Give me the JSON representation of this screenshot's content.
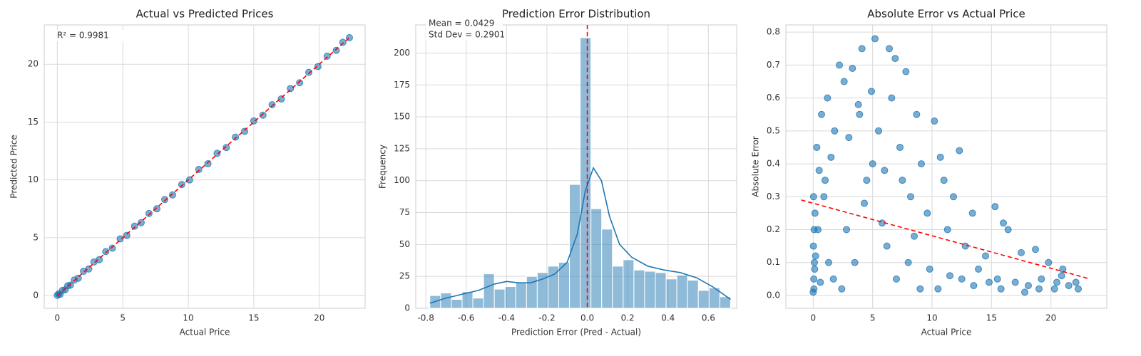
{
  "chart_data": [
    {
      "type": "scatter",
      "title": "Actual vs Predicted Prices",
      "x_label": "Actual Price",
      "y_label": "Predicted Price",
      "xlim": [
        -1,
        23.5
      ],
      "ylim": [
        -1.1,
        23.4
      ],
      "xticks": [
        0,
        5,
        10,
        15,
        20
      ],
      "yticks": [
        0,
        5,
        10,
        15,
        20
      ],
      "grid": true,
      "color": "#1f77b4",
      "x": [
        0,
        0.1,
        0.2,
        0.4,
        0.6,
        0.8,
        1,
        1.3,
        1.6,
        2,
        2.4,
        2.8,
        3.2,
        3.7,
        4.2,
        4.8,
        5.3,
        5.9,
        6.4,
        7,
        7.6,
        8.2,
        8.8,
        9.5,
        10.1,
        10.8,
        11.5,
        12.2,
        12.9,
        13.6,
        14.3,
        15,
        15.7,
        16.4,
        17.1,
        17.8,
        18.5,
        19.2,
        19.9,
        20.6,
        21.3,
        21.8,
        22.3
      ],
      "y": [
        0.02,
        0.15,
        0.1,
        0.45,
        0.5,
        0.85,
        0.9,
        1.35,
        1.5,
        2.1,
        2.3,
        2.9,
        3.1,
        3.8,
        4.1,
        4.9,
        5.2,
        6,
        6.3,
        7.1,
        7.5,
        8.3,
        8.7,
        9.6,
        10,
        10.9,
        11.4,
        12.3,
        12.8,
        13.7,
        14.2,
        15.1,
        15.6,
        16.5,
        17,
        17.9,
        18.4,
        19.3,
        19.8,
        20.7,
        21.2,
        21.9,
        22.3
      ],
      "lines": [
        {
          "x": [
            0,
            22.3
          ],
          "y": [
            0,
            22.3
          ],
          "color": "#ff0000",
          "dashed": true
        }
      ],
      "annotations": [
        "R² = 0.9981"
      ]
    },
    {
      "type": "histogram",
      "title": "Prediction Error Distribution",
      "x_label": "Prediction Error (Pred - Actual)",
      "y_label": "Frequency",
      "xlim": [
        -0.85,
        0.74
      ],
      "ylim": [
        0,
        222
      ],
      "xticks": [
        -0.8,
        -0.6,
        -0.4,
        -0.2,
        {
          "value": 0,
          "label": "0.0"
        },
        0.2,
        0.4,
        0.6
      ],
      "yticks": [
        0,
        25,
        50,
        75,
        100,
        125,
        150,
        175,
        200
      ],
      "grid": true,
      "color": "#1f77b4",
      "bins": [
        -0.78,
        -0.7268,
        -0.6736,
        -0.6204,
        -0.5672,
        -0.514,
        -0.4608,
        -0.4076,
        -0.3544,
        -0.3012,
        -0.248,
        -0.1948,
        -0.1416,
        -0.0884,
        -0.0352,
        0.018,
        0.0712,
        0.1244,
        0.1776,
        0.2308,
        0.284,
        0.3372,
        0.3904,
        0.4436,
        0.4968,
        0.55,
        0.6032,
        0.6564,
        0.7096
      ],
      "values": [
        10,
        12,
        7,
        13,
        8,
        27,
        15,
        17,
        20,
        25,
        28,
        33,
        36,
        97,
        212,
        78,
        62,
        33,
        38,
        30,
        29,
        28,
        23,
        26,
        22,
        14,
        16,
        9
      ],
      "lines": [
        {
          "x": [
            -0.78,
            -0.7,
            -0.62,
            -0.54,
            -0.46,
            -0.4,
            -0.34,
            -0.28,
            -0.22,
            -0.16,
            -0.1,
            -0.05,
            -0.01,
            0.03,
            0.07,
            0.11,
            0.16,
            0.22,
            0.3,
            0.38,
            0.46,
            0.54,
            0.62,
            0.71
          ],
          "y": [
            4,
            8,
            11,
            14,
            19,
            21,
            20,
            20,
            23,
            27,
            36,
            58,
            92,
            110,
            100,
            72,
            50,
            40,
            33,
            30,
            28,
            24,
            17,
            7
          ],
          "color": "#1f77b4",
          "dashed": false
        }
      ],
      "vline": {
        "value": 0,
        "color": "#ff0000"
      },
      "annotations": [
        "Mean = 0.0429",
        "Std Dev = 0.2901"
      ]
    },
    {
      "type": "scatter",
      "title": "Absolute Error vs Actual Price",
      "x_label": "Actual Price",
      "y_label": "Absolute Error",
      "xlim": [
        -2.3,
        24.7
      ],
      "ylim": [
        -0.039,
        0.822
      ],
      "xticks": [
        0,
        5,
        10,
        15,
        20
      ],
      "yticks": [
        {
          "value": 0,
          "label": "0.0"
        },
        0.1,
        0.2,
        0.3,
        0.4,
        0.5,
        0.6,
        0.7,
        0.8
      ],
      "grid": true,
      "color": "#1f77b4",
      "x": [
        0,
        0.05,
        0.1,
        0.02,
        0.08,
        0.15,
        0.03,
        0.12,
        0.06,
        0.2,
        0.3,
        0.5,
        0.7,
        0.9,
        1.2,
        1.5,
        1.8,
        0.4,
        0.6,
        1.0,
        1.3,
        1.7,
        2.2,
        2.6,
        3.0,
        3.3,
        3.8,
        4.1,
        4.5,
        4.9,
        5.2,
        2.8,
        3.5,
        4.3,
        5.0,
        2.4,
        3.9,
        5.5,
        6.0,
        6.4,
        6.9,
        7.3,
        7.8,
        8.2,
        8.7,
        9.1,
        9.6,
        6.2,
        7.0,
        8.0,
        9.0,
        5.8,
        6.6,
        7.5,
        8.5,
        9.8,
        10.2,
        10.7,
        11.3,
        11.8,
        12.3,
        12.8,
        13.4,
        13.9,
        14.5,
        10.5,
        11.5,
        12.5,
        13.5,
        14.8,
        11.0,
        15.3,
        15.8,
        16.4,
        17.0,
        17.5,
        18.1,
        18.7,
        19.2,
        19.8,
        20.3,
        20.9,
        21.5,
        22.1,
        16.0,
        17.8,
        19.0,
        20.5,
        21.0,
        22.3,
        15.5
      ],
      "y": [
        0.01,
        0.05,
        0.1,
        0.15,
        0.2,
        0.25,
        0.3,
        0.08,
        0.02,
        0.12,
        0.45,
        0.38,
        0.55,
        0.3,
        0.6,
        0.42,
        0.5,
        0.2,
        0.04,
        0.35,
        0.1,
        0.05,
        0.7,
        0.65,
        0.48,
        0.69,
        0.58,
        0.75,
        0.35,
        0.62,
        0.78,
        0.2,
        0.1,
        0.28,
        0.4,
        0.02,
        0.55,
        0.5,
        0.38,
        0.75,
        0.72,
        0.45,
        0.68,
        0.3,
        0.55,
        0.4,
        0.25,
        0.15,
        0.05,
        0.1,
        0.02,
        0.22,
        0.6,
        0.35,
        0.18,
        0.08,
        0.53,
        0.42,
        0.2,
        0.3,
        0.44,
        0.15,
        0.25,
        0.08,
        0.12,
        0.02,
        0.06,
        0.05,
        0.03,
        0.04,
        0.35,
        0.27,
        0.02,
        0.2,
        0.04,
        0.13,
        0.03,
        0.14,
        0.05,
        0.1,
        0.02,
        0.06,
        0.03,
        0.04,
        0.22,
        0.01,
        0.02,
        0.04,
        0.08,
        0.02,
        0.05
      ],
      "lines": [
        {
          "x": [
            -1,
            23.3
          ],
          "y": [
            0.29,
            0.05
          ],
          "color": "#ff0000",
          "dashed": true
        }
      ]
    }
  ]
}
